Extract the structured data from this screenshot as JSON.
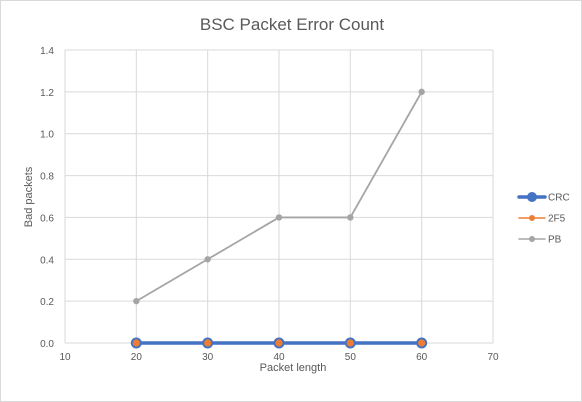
{
  "chart_data": {
    "type": "line",
    "title": "BSC Packet Error Count",
    "xlabel": "Packet length",
    "ylabel": "Bad packets",
    "xlim": [
      10,
      70
    ],
    "ylim": [
      0,
      1.4
    ],
    "x_ticks": [
      "10",
      "20",
      "30",
      "40",
      "50",
      "60",
      "70"
    ],
    "y_ticks": [
      "0.0",
      "0.2",
      "0.4",
      "0.6",
      "0.8",
      "1.0",
      "1.2",
      "1.4"
    ],
    "grid": true,
    "legend_position": "right",
    "x": [
      20,
      30,
      40,
      50,
      60
    ],
    "series": [
      {
        "name": "CRC",
        "values": [
          0,
          0,
          0,
          0,
          0
        ],
        "color": "#4472c4"
      },
      {
        "name": "2F5",
        "values": [
          0,
          0,
          0,
          0,
          0
        ],
        "color": "#ed7d31"
      },
      {
        "name": "PB",
        "values": [
          0.2,
          0.4,
          0.6,
          0.6,
          1.2
        ],
        "color": "#a5a5a5"
      }
    ]
  }
}
